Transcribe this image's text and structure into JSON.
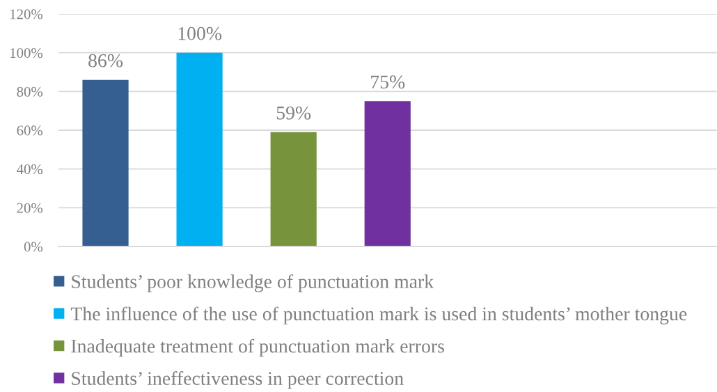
{
  "chart_data": {
    "type": "bar",
    "categories": [
      null,
      null,
      null,
      null,
      null,
      null,
      null
    ],
    "series": [
      {
        "name": "Students’ poor knowledge of punctuation mark",
        "color": "#365f91",
        "values": [
          86,
          null,
          null,
          null,
          null,
          null,
          null
        ],
        "value_labels": [
          "86%",
          null,
          null,
          null,
          null,
          null,
          null
        ]
      },
      {
        "name": "The influence of the use of punctuation mark is used in students’ mother tongue",
        "color": "#00b0f0",
        "values": [
          null,
          100,
          null,
          null,
          null,
          null,
          null
        ],
        "value_labels": [
          null,
          "100%",
          null,
          null,
          null,
          null,
          null
        ]
      },
      {
        "name": "Inadequate treatment of punctuation mark errors",
        "color": "#77933c",
        "values": [
          null,
          null,
          59,
          null,
          null,
          null,
          null
        ],
        "value_labels": [
          null,
          null,
          "59%",
          null,
          null,
          null,
          null
        ]
      },
      {
        "name": "Students’ ineffectiveness in peer correction",
        "color": "#7030a0",
        "values": [
          null,
          null,
          null,
          75,
          null,
          null,
          null
        ],
        "value_labels": [
          null,
          null,
          null,
          "75%",
          null,
          null,
          null
        ]
      }
    ],
    "ylim": [
      0,
      120
    ],
    "yticks": [
      {
        "value": 0,
        "label": "0%"
      },
      {
        "value": 20,
        "label": "20%"
      },
      {
        "value": 40,
        "label": "40%"
      },
      {
        "value": 60,
        "label": "60%"
      },
      {
        "value": 80,
        "label": "80%"
      },
      {
        "value": 100,
        "label": "100%"
      },
      {
        "value": 120,
        "label": "120%"
      }
    ],
    "grid": "y",
    "legend": "bottom"
  }
}
